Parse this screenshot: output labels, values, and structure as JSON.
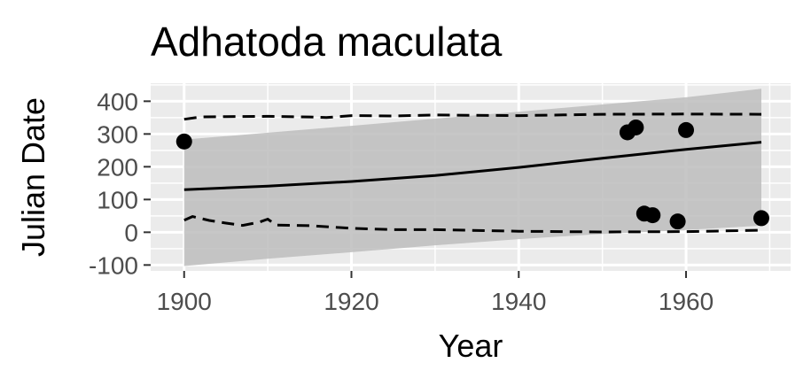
{
  "chart_data": {
    "type": "scatter",
    "title": "Adhatoda maculata",
    "xlabel": "Year",
    "ylabel": "Julian Date",
    "xlim": [
      1896,
      1972.5
    ],
    "ylim": [
      -118,
      455
    ],
    "x_ticks": [
      1900,
      1920,
      1940,
      1960
    ],
    "x_minor_ticks": [
      1910,
      1930,
      1950,
      1970
    ],
    "y_ticks": [
      -100,
      0,
      100,
      200,
      300,
      400
    ],
    "y_tick_labels": [
      "-100",
      "0",
      "100",
      "200",
      "300",
      "400"
    ],
    "y_minor_ticks": [
      -50,
      50,
      150,
      250,
      350,
      450
    ],
    "x_tick_labels": [
      "1900",
      "1920",
      "1940",
      "1960"
    ],
    "grid": true,
    "legend": "none",
    "colors": {
      "panel": "#ebebeb",
      "grid": "#ffffff",
      "ribbon": "#bdbdbd",
      "line": "#000000",
      "points": "#000000"
    },
    "points": [
      {
        "x": 1900,
        "y": 277
      },
      {
        "x": 1953,
        "y": 305
      },
      {
        "x": 1954,
        "y": 320
      },
      {
        "x": 1955,
        "y": 57
      },
      {
        "x": 1956,
        "y": 52
      },
      {
        "x": 1959,
        "y": 33
      },
      {
        "x": 1960,
        "y": 312
      },
      {
        "x": 1969,
        "y": 43
      }
    ],
    "trend_line": {
      "x": [
        1900,
        1910,
        1920,
        1930,
        1940,
        1950,
        1960,
        1969
      ],
      "y": [
        130,
        141,
        155,
        173,
        198,
        226,
        253,
        275
      ]
    },
    "confidence_ribbon": {
      "x": [
        1900,
        1910,
        1920,
        1930,
        1940,
        1950,
        1960,
        1969
      ],
      "upper": [
        283,
        304,
        325,
        347,
        368,
        390,
        412,
        438
      ],
      "lower": [
        -103,
        -81,
        -61,
        -40,
        -21,
        -5,
        7,
        20
      ]
    },
    "upper_dashed": {
      "x": [
        1900,
        1902,
        1905,
        1910,
        1915,
        1917,
        1920,
        1925,
        1930,
        1935,
        1940,
        1950,
        1960,
        1969
      ],
      "y": [
        345,
        352,
        353,
        354,
        352,
        350,
        356,
        355,
        358,
        357,
        356,
        360,
        361,
        360
      ]
    },
    "lower_dashed": {
      "x": [
        1900,
        1901,
        1903,
        1905,
        1907,
        1909,
        1910,
        1911,
        1915,
        1920,
        1925,
        1930,
        1940,
        1950,
        1960,
        1969
      ],
      "y": [
        37,
        48,
        36,
        28,
        21,
        31,
        40,
        22,
        20,
        12,
        8,
        8,
        3,
        1,
        2,
        6
      ]
    }
  }
}
